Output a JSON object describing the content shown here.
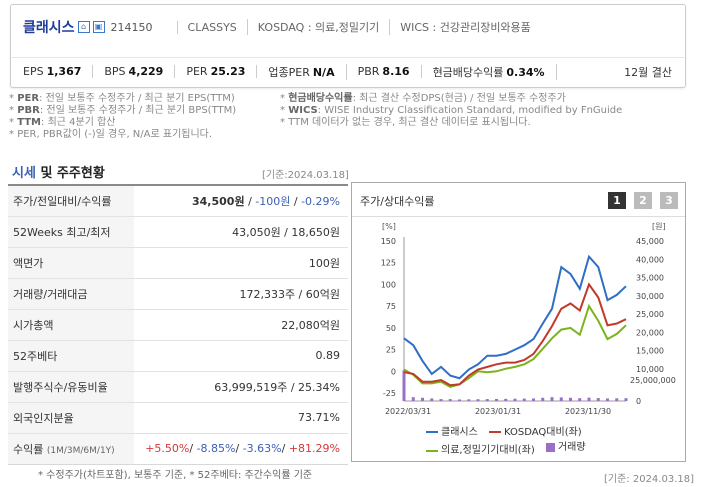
{
  "header": {
    "company": "클래시스",
    "home_icon": "home-icon",
    "ir_icon": "building-icon",
    "code": "214150",
    "english_name": "CLASSYS",
    "market": "KOSDAQ : 의료,정밀기기",
    "wics": "WICS : 건강관리장비와용품",
    "metrics": [
      {
        "label": "EPS",
        "value": "1,367"
      },
      {
        "label": "BPS",
        "value": "4,229"
      },
      {
        "label": "PER",
        "value": "25.23"
      },
      {
        "label": "업종PER",
        "value": "N/A"
      },
      {
        "label": "PBR",
        "value": "8.16"
      },
      {
        "label": "현금배당수익률",
        "value": "0.34%"
      }
    ],
    "settlement": "12월 결산"
  },
  "notes_left": [
    {
      "key": "PER",
      "text": ": 전일 보통주 수정주가 / 최근 분기 EPS(TTM)"
    },
    {
      "key": "PBR",
      "text": ": 전일 보통주 수정주가 / 최근 분기 BPS(TTM)"
    },
    {
      "key": "TTM",
      "text": ": 최근 4분기 합산"
    },
    {
      "key": "",
      "text": "PER, PBR값이 (-)일 경우, N/A로 표기됩니다."
    }
  ],
  "notes_right": [
    {
      "key": "현금배당수익률",
      "text": ": 최근 결산 수정DPS(현금) / 전일 보통주 수정주가"
    },
    {
      "key": "WICS",
      "text": ": WISE Industry Classification Standard, modified by FnGuide"
    },
    {
      "key": "",
      "text": "TTM 데이터가 없는 경우, 최근 결산 데이터로 표시됩니다."
    }
  ],
  "section": {
    "title_hl": "시세",
    "title_rest": " 및 주주현황",
    "base_date": "[기준:2024.03.18]"
  },
  "table": {
    "price_label": "주가/전일대비/수익률",
    "price": "34,500원",
    "change": "-100원",
    "change_pct": "-0.29%",
    "rows": [
      {
        "label": "52Weeks 최고/최저",
        "value": "43,050원 / 18,650원"
      },
      {
        "label": "액면가",
        "value": "100원"
      },
      {
        "label": "거래량/거래대금",
        "value": "172,333주 / 60억원"
      },
      {
        "label": "시가총액",
        "value": "22,080억원"
      },
      {
        "label": "52주베타",
        "value": "0.89"
      },
      {
        "label": "발행주식수/유동비율",
        "value": "63,999,519주 / 25.34%"
      },
      {
        "label": "외국인지분율",
        "value": "73.71%"
      }
    ],
    "return_label": "수익률",
    "return_periods": "(1M/3M/6M/1Y)",
    "returns": [
      "+5.50%",
      "-8.85%",
      "-3.63%",
      "+81.29%"
    ]
  },
  "foot_left": "* 수정주가(차트포함), 보통주 기준, * 52주베타: 주간수익률 기준",
  "chart": {
    "title": "주가/상대수익률",
    "pages": [
      "1",
      "2",
      "3"
    ],
    "foot": "[기준: 2024.03.18]"
  },
  "chart_data": {
    "type": "line",
    "left_unit": "[%]",
    "right_unit": "[원]",
    "y_left_ticks": [
      "150",
      "125",
      "100",
      "75",
      "50",
      "25",
      "0",
      "-25"
    ],
    "y_right_ticks": [
      "45,000",
      "40,000",
      "35,000",
      "30,000",
      "25,000",
      "20,000",
      "15,000",
      "10,000"
    ],
    "volume_ticks": [
      "25,000,000",
      "0"
    ],
    "x_labels": [
      "2022/03/31",
      "2023/01/31",
      "2023/11/30"
    ],
    "ylim_left": [
      -25,
      150
    ],
    "series": [
      {
        "name": "클래시스",
        "color": "#2f6ec7",
        "values": [
          38,
          30,
          12,
          -3,
          5,
          -5,
          -8,
          2,
          8,
          18,
          18,
          20,
          25,
          30,
          37,
          55,
          72,
          120,
          112,
          95,
          132,
          120,
          82,
          88,
          98
        ]
      },
      {
        "name": "KOSDAQ대비(좌)",
        "color": "#c0392b",
        "values": [
          -1,
          -3,
          -12,
          -12,
          -10,
          -16,
          -15,
          -5,
          2,
          5,
          8,
          10,
          10,
          13,
          20,
          35,
          52,
          72,
          78,
          70,
          100,
          85,
          53,
          55,
          60
        ]
      },
      {
        "name": "의료,정밀기기대비(좌)",
        "color": "#7bb31e",
        "values": [
          2,
          -4,
          -14,
          -14,
          -12,
          -18,
          -15,
          -8,
          0,
          -1,
          0,
          3,
          5,
          8,
          14,
          26,
          38,
          48,
          50,
          42,
          75,
          58,
          37,
          43,
          53
        ]
      }
    ],
    "volume": {
      "name": "거래량",
      "color": "#9b6fc7",
      "values": [
        24000000,
        3000000,
        2500000,
        2000000,
        1500000,
        1500000,
        1200000,
        1300000,
        1400000,
        1500000,
        1600000,
        1700000,
        1800000,
        1900000,
        2000000,
        2500000,
        3000000,
        2800000,
        2500000,
        2200000,
        2600000,
        2300000,
        2000000,
        2100000,
        2200000
      ]
    }
  }
}
